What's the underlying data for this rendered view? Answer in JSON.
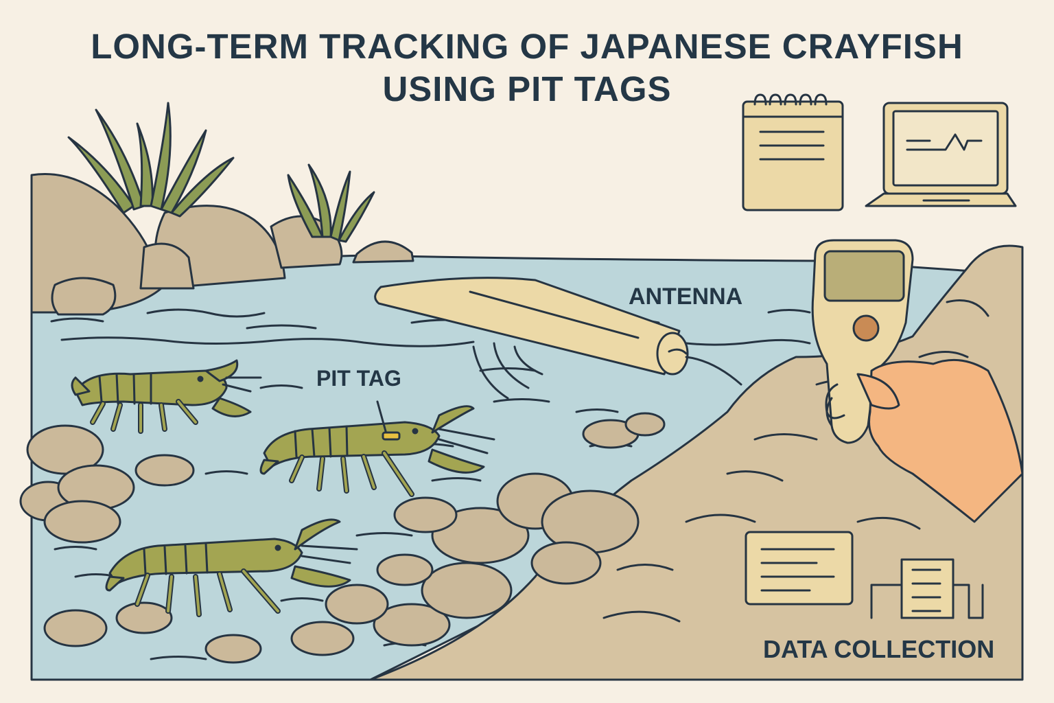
{
  "title": {
    "line1": "LONG-TERM TRACKING OF JAPANESE CRAYFISH",
    "line2": "USING PIT TAGS"
  },
  "labels": {
    "antenna": "ANTENNA",
    "pit_tag": "PIT TAG",
    "data_collection": "DATA COLLECTION"
  },
  "colors": {
    "background": "#f7f0e4",
    "water": "#bcd6da",
    "land": "#d6c3a1",
    "rock": "#cbb99a",
    "crayfish": "#a3a552",
    "plants": "#8c9c55",
    "reader": "#ecd9a7",
    "hand": "#f4b681",
    "pit_tag": "#e8c041",
    "outline": "#263442",
    "title": "#243746"
  },
  "icons": [
    "notepad-icon",
    "laptop-icon",
    "document-icon",
    "bar-graph-icon"
  ]
}
